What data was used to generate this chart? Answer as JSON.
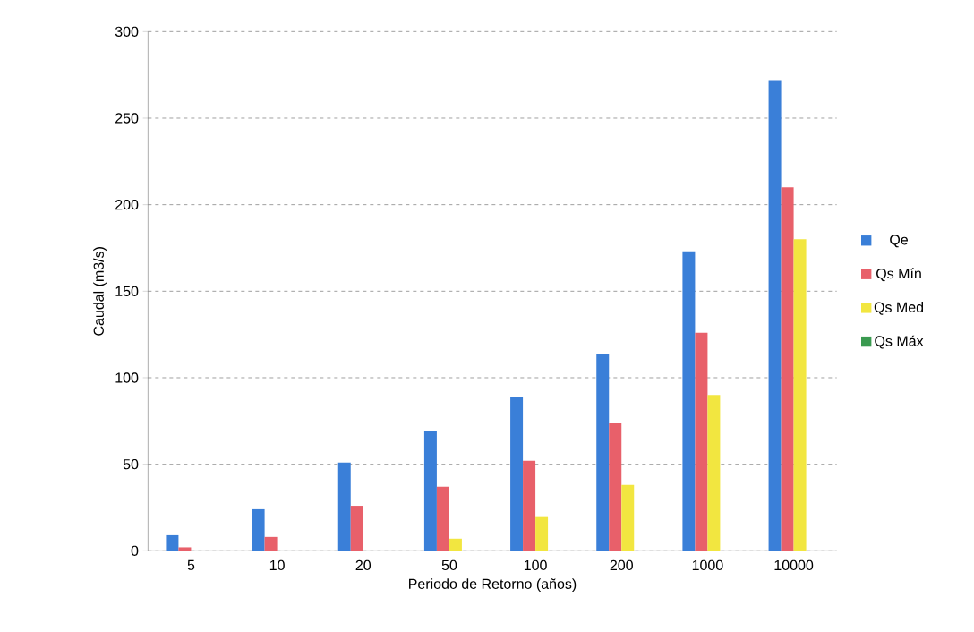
{
  "chart_data": {
    "type": "bar",
    "xlabel": "Periodo de Retorno (años)",
    "ylabel": "Caudal (m3/s)",
    "categories": [
      "5",
      "10",
      "20",
      "50",
      "100",
      "200",
      "1000",
      "10000"
    ],
    "series": [
      {
        "name": "Qe",
        "color": "#3a7fd8",
        "values": [
          9,
          24,
          51,
          69,
          89,
          114,
          173,
          272
        ]
      },
      {
        "name": "Qs Mín",
        "color": "#e8606a",
        "values": [
          2,
          8,
          26,
          37,
          52,
          74,
          126,
          210
        ]
      },
      {
        "name": "Qs Med",
        "color": "#f2e640",
        "values": [
          0,
          0,
          0,
          7,
          20,
          38,
          90,
          180
        ]
      },
      {
        "name": "Qs Máx",
        "color": "#3a9a50",
        "values": [
          0,
          0,
          0,
          0,
          0,
          0,
          0,
          0
        ]
      }
    ],
    "ylim": [
      0,
      300
    ],
    "yticks": [
      0,
      50,
      100,
      150,
      200,
      250,
      300
    ],
    "grid": "y",
    "legend": "right"
  }
}
